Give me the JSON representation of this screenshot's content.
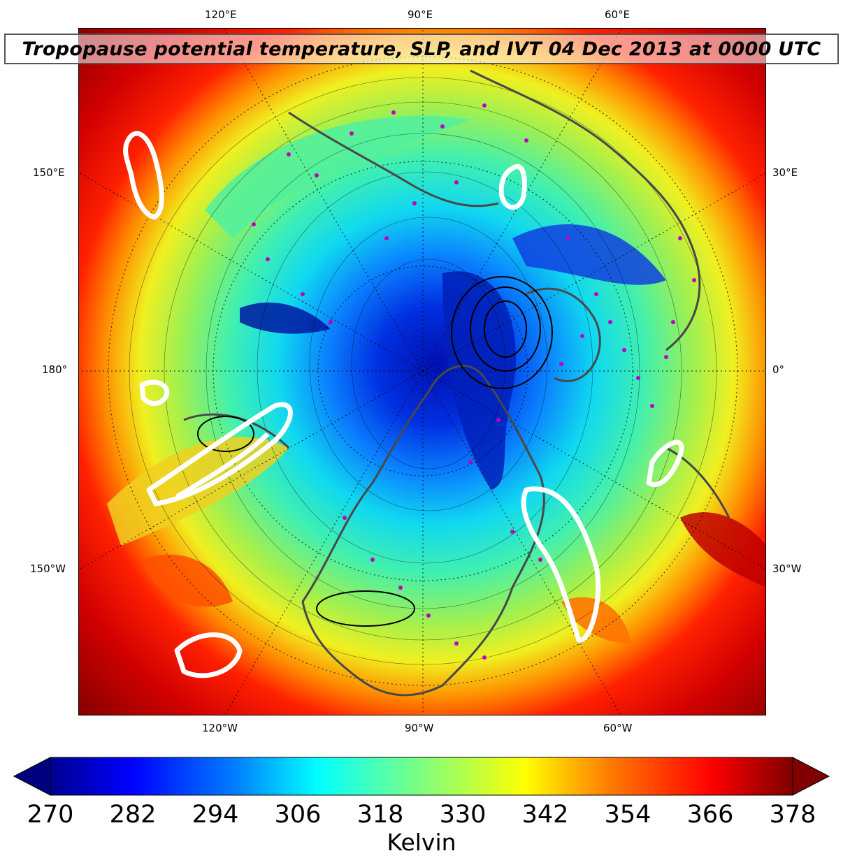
{
  "title": "Tropopause potential temperature, SLP, and IVT 04 Dec 2013 at 0000 UTC",
  "map": {
    "projection": "north-polar-stereographic",
    "top_labels": [
      "120°E",
      "90°E",
      "60°E"
    ],
    "bottom_labels": [
      "120°W",
      "90°W",
      "60°W"
    ],
    "left_labels": [
      "150°E",
      "180°",
      "150°W"
    ],
    "right_labels": [
      "30°E",
      "0°",
      "30°W"
    ],
    "field": "tropopause potential temperature (shaded)",
    "overlays": [
      "SLP contours (black)",
      "IVT contours (white)",
      "coastlines (gray)",
      "station markers (magenta)"
    ]
  },
  "colorbar": {
    "label": "Kelvin",
    "ticks": [
      "270",
      "282",
      "294",
      "306",
      "318",
      "330",
      "342",
      "354",
      "366",
      "378"
    ],
    "min": 270,
    "max": 378,
    "extend": "both",
    "colormap": "jet",
    "colors": [
      "#00007f",
      "#0000ff",
      "#007fff",
      "#00ffff",
      "#7fff7f",
      "#ffff00",
      "#ff7f00",
      "#ff0000",
      "#7f0000"
    ]
  }
}
